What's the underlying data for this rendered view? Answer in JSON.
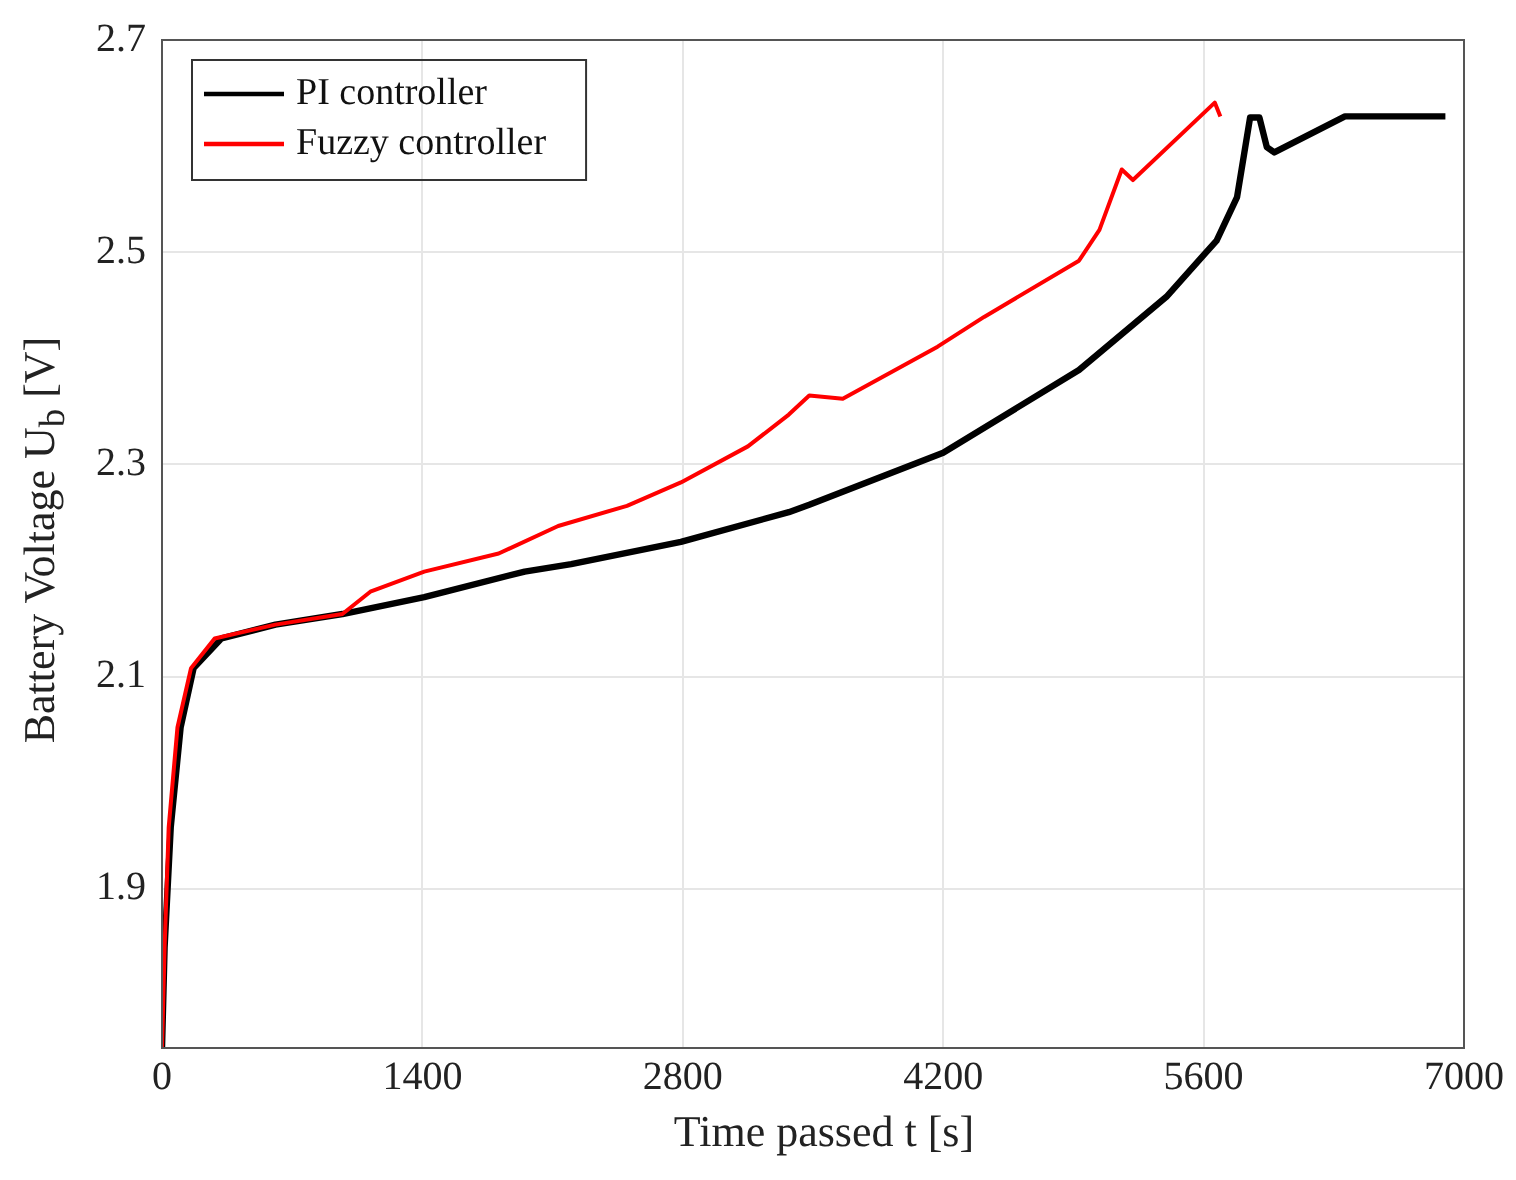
{
  "chart_data": {
    "type": "line",
    "xlabel": "Time passed  t  [s]",
    "ylabel": "Battery Voltage  U$_{b}$  [V]",
    "xlim": [
      0,
      7000
    ],
    "xticks": [
      0,
      1400,
      2800,
      4200,
      5600,
      7000
    ],
    "ylim": [
      1.75,
      2.7
    ],
    "yticks": [
      1.9,
      2.1,
      2.3,
      2.5,
      2.7
    ],
    "grid": true,
    "legend": "top left",
    "marker": "none",
    "line_style": "solid",
    "series": [
      {
        "name": "PI controller",
        "color": "#000000",
        "x": [
          0,
          14,
          47,
          100,
          170,
          320,
          610,
          970,
          1410,
          1950,
          2200,
          2790,
          3370,
          3480,
          4200,
          4930,
          5400,
          5670,
          5780,
          5850,
          5900,
          5940,
          5980,
          6360,
          6900
        ],
        "values": [
          1.75,
          1.845,
          1.958,
          2.052,
          2.108,
          2.136,
          2.149,
          2.159,
          2.175,
          2.199,
          2.206,
          2.227,
          2.255,
          2.262,
          2.311,
          2.389,
          2.458,
          2.511,
          2.552,
          2.627,
          2.627,
          2.599,
          2.594,
          2.628,
          2.628
        ]
      },
      {
        "name": "Fuzzy controller",
        "color": "#ff0000",
        "x": [
          0,
          14,
          36,
          83,
          156,
          283,
          610,
          970,
          1120,
          1410,
          1810,
          2130,
          2500,
          2790,
          3150,
          3370,
          3480,
          3660,
          4170,
          4420,
          4930,
          5040,
          5160,
          5220,
          5660,
          5690
        ],
        "values": [
          1.75,
          1.845,
          1.958,
          2.052,
          2.108,
          2.136,
          2.149,
          2.159,
          2.18,
          2.199,
          2.216,
          2.242,
          2.261,
          2.283,
          2.317,
          2.347,
          2.365,
          2.362,
          2.411,
          2.439,
          2.492,
          2.521,
          2.578,
          2.568,
          2.641,
          2.628
        ]
      }
    ]
  }
}
